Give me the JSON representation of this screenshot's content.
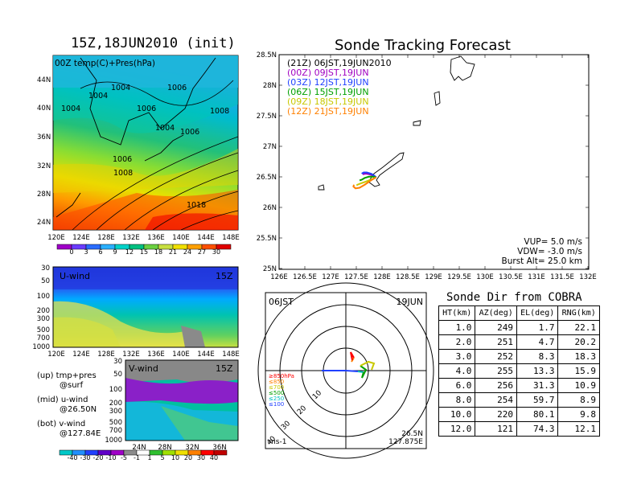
{
  "map_panel": {
    "title": "15Z,18JUN2010 (init)",
    "field_label": "00Z temp(C)+Pres(hPa)",
    "lat_ticks": [
      "44N",
      "40N",
      "36N",
      "32N",
      "28N",
      "24N"
    ],
    "lon_ticks": [
      "120E",
      "124E",
      "128E",
      "132E",
      "136E",
      "140E",
      "144E",
      "148E"
    ],
    "pressure_labels": [
      "1004",
      "1006",
      "1004",
      "1006",
      "1008",
      "1004",
      "1004",
      "1006",
      "1006",
      "1008",
      "1018"
    ],
    "colorbar": [
      "0",
      "3",
      "6",
      "9",
      "12",
      "15",
      "18",
      "21",
      "24",
      "27",
      "30"
    ]
  },
  "u_panel": {
    "label": "U-wind",
    "time": "15Z",
    "p_ticks": [
      "30",
      "50",
      "100",
      "200",
      "300",
      "500",
      "700",
      "1000"
    ],
    "lon_ticks": [
      "120E",
      "124E",
      "128E",
      "132E",
      "136E",
      "140E",
      "144E",
      "148E"
    ]
  },
  "v_panel": {
    "label": "V-wind",
    "time": "15Z",
    "p_ticks": [
      "30",
      "50",
      "100",
      "200",
      "300",
      "500",
      "700",
      "1000"
    ],
    "lat_ticks": [
      "24N",
      "28N",
      "32N",
      "36N"
    ],
    "colorbar": [
      "-40",
      "-30",
      "-20",
      "-10",
      "-5",
      "-1",
      "1",
      "5",
      "10",
      "20",
      "30",
      "40"
    ]
  },
  "legend_notes": {
    "up": "(up) tmp+pres",
    "up2": "@surf",
    "mid": "(mid) u-wind",
    "mid2": "@26.50N",
    "bot": "(bot) v-wind",
    "bot2": "@127.84E"
  },
  "tracking": {
    "title": "Sonde Tracking Forecast",
    "launches": [
      {
        "label": "(21Z) 06JST,19JUN2010",
        "color": "#000000"
      },
      {
        "label": "(00Z) 09JST,19JUN",
        "color": "#a000c0"
      },
      {
        "label": "(03Z) 12JST,19JUN",
        "color": "#2040ff"
      },
      {
        "label": "(06Z) 15JST,19JUN",
        "color": "#00a000"
      },
      {
        "label": "(09Z) 18JST,19JUN",
        "color": "#c8c800"
      },
      {
        "label": "(12Z) 21JST,19JUN",
        "color": "#ff8000"
      }
    ],
    "lat_ticks": [
      "28.5N",
      "28N",
      "27.5N",
      "27N",
      "26.5N",
      "26N",
      "25.5N",
      "25N"
    ],
    "lon_ticks": [
      "126E",
      "126.5E",
      "127E",
      "127.5E",
      "128E",
      "128.5E",
      "129E",
      "129.5E",
      "130E",
      "130.5E",
      "131E",
      "131.5E",
      "132E"
    ],
    "params": {
      "vup": "VUP= 5.0 m/s",
      "vdw": "VDW= -3.0 m/s",
      "burst": "Burst Alt= 25.0 km"
    }
  },
  "polar": {
    "time_left": "06JST",
    "time_right": "19JUN",
    "ring_labels": [
      "10",
      "20",
      "30",
      "40"
    ],
    "height_legend": [
      "≥850hPa",
      "≤850",
      "≤700",
      "≤500",
      "≤250",
      "≤100"
    ],
    "height_colors": [
      "#ff0000",
      "#ff8000",
      "#c8c800",
      "#00a000",
      "#00c0c0",
      "#2040ff"
    ],
    "unit": "ms-1",
    "lat": "26.5N",
    "lon": "127.875E"
  },
  "direction_table": {
    "title": "Sonde Dir from COBRA",
    "columns": [
      "HT(km)",
      "AZ(deg)",
      "EL(deg)",
      "RNG(km)"
    ],
    "rows": [
      [
        "1.0",
        "249",
        "1.7",
        "22.1"
      ],
      [
        "2.0",
        "251",
        "4.7",
        "20.2"
      ],
      [
        "3.0",
        "252",
        "8.3",
        "18.3"
      ],
      [
        "4.0",
        "255",
        "13.3",
        "15.9"
      ],
      [
        "6.0",
        "256",
        "31.3",
        "10.9"
      ],
      [
        "8.0",
        "254",
        "59.7",
        "8.9"
      ],
      [
        "10.0",
        "220",
        "80.1",
        "9.8"
      ],
      [
        "12.0",
        "121",
        "74.3",
        "12.1"
      ]
    ]
  },
  "chart_data": [
    {
      "type": "heatmap",
      "title": "15Z,18JUN2010 (init)",
      "field": "00Z temp(C)+Pres(hPa)",
      "x_ticks": [
        "120E",
        "124E",
        "128E",
        "132E",
        "136E",
        "140E",
        "144E",
        "148E"
      ],
      "y_ticks": [
        "24N",
        "28N",
        "32N",
        "36N",
        "40N",
        "44N"
      ],
      "color_levels": [
        0,
        3,
        6,
        9,
        12,
        15,
        18,
        21,
        24,
        27,
        30
      ],
      "contour_labels": [
        1004,
        1006,
        1004,
        1006,
        1008,
        1004,
        1004,
        1006,
        1006,
        1008,
        1018
      ]
    },
    {
      "type": "heatmap",
      "title": "U-wind",
      "x_ticks": [
        "120E",
        "124E",
        "128E",
        "132E",
        "136E",
        "140E",
        "144E",
        "148E"
      ],
      "y_ticks": [
        30,
        50,
        100,
        200,
        300,
        500,
        700,
        1000
      ]
    },
    {
      "type": "heatmap",
      "title": "V-wind",
      "x_ticks": [
        "24N",
        "28N",
        "32N",
        "36N"
      ],
      "y_ticks": [
        30,
        50,
        100,
        200,
        300,
        500,
        700,
        1000
      ],
      "color_levels": [
        -40,
        -30,
        -20,
        -10,
        -5,
        -1,
        1,
        5,
        10,
        20,
        30,
        40
      ]
    },
    {
      "type": "line",
      "title": "Sonde Tracking Forecast",
      "xlim": [
        126,
        132
      ],
      "ylim": [
        25,
        28.5
      ],
      "series": [
        {
          "name": "(21Z) 06JST,19JUN2010",
          "x": [
            127.88,
            127.85,
            127.8,
            127.72,
            127.65
          ],
          "y": [
            26.5,
            26.52,
            26.55,
            26.56,
            26.56
          ]
        },
        {
          "name": "(00Z) 09JST,19JUN",
          "x": [
            127.88,
            127.82,
            127.75,
            127.68,
            127.62
          ],
          "y": [
            26.5,
            26.53,
            26.55,
            26.56,
            26.55
          ]
        },
        {
          "name": "(03Z) 12JST,19JUN",
          "x": [
            127.88,
            127.84,
            127.78,
            127.7,
            127.64,
            127.6
          ],
          "y": [
            26.5,
            26.53,
            26.56,
            26.58,
            26.58,
            26.56
          ]
        },
        {
          "name": "(06Z) 15JST,19JUN",
          "x": [
            127.88,
            127.82,
            127.74,
            127.66,
            127.6,
            127.56
          ],
          "y": [
            26.5,
            26.51,
            26.51,
            26.49,
            26.46,
            26.45
          ]
        },
        {
          "name": "(09Z) 18JST,19JUN",
          "x": [
            127.88,
            127.8,
            127.68,
            127.58,
            127.52,
            127.5
          ],
          "y": [
            26.5,
            26.47,
            26.43,
            26.4,
            26.38,
            26.37
          ]
        },
        {
          "name": "(12Z) 21JST,19JUN",
          "x": [
            127.88,
            127.78,
            127.66,
            127.56,
            127.48,
            127.44,
            127.45
          ],
          "y": [
            26.5,
            26.45,
            26.38,
            26.33,
            26.32,
            26.35,
            26.38
          ]
        }
      ]
    },
    {
      "type": "scatter",
      "title": "06JST 19JUN",
      "ring_levels": [
        10,
        20,
        30,
        40
      ],
      "unit": "ms-1"
    },
    {
      "type": "table",
      "title": "Sonde Dir from COBRA",
      "columns": [
        "HT(km)",
        "AZ(deg)",
        "EL(deg)",
        "RNG(km)"
      ],
      "rows": [
        [
          1.0,
          249,
          1.7,
          22.1
        ],
        [
          2.0,
          251,
          4.7,
          20.2
        ],
        [
          3.0,
          252,
          8.3,
          18.3
        ],
        [
          4.0,
          255,
          13.3,
          15.9
        ],
        [
          6.0,
          256,
          31.3,
          10.9
        ],
        [
          8.0,
          254,
          59.7,
          8.9
        ],
        [
          10.0,
          220,
          80.1,
          9.8
        ],
        [
          12.0,
          121,
          74.3,
          12.1
        ]
      ]
    }
  ]
}
